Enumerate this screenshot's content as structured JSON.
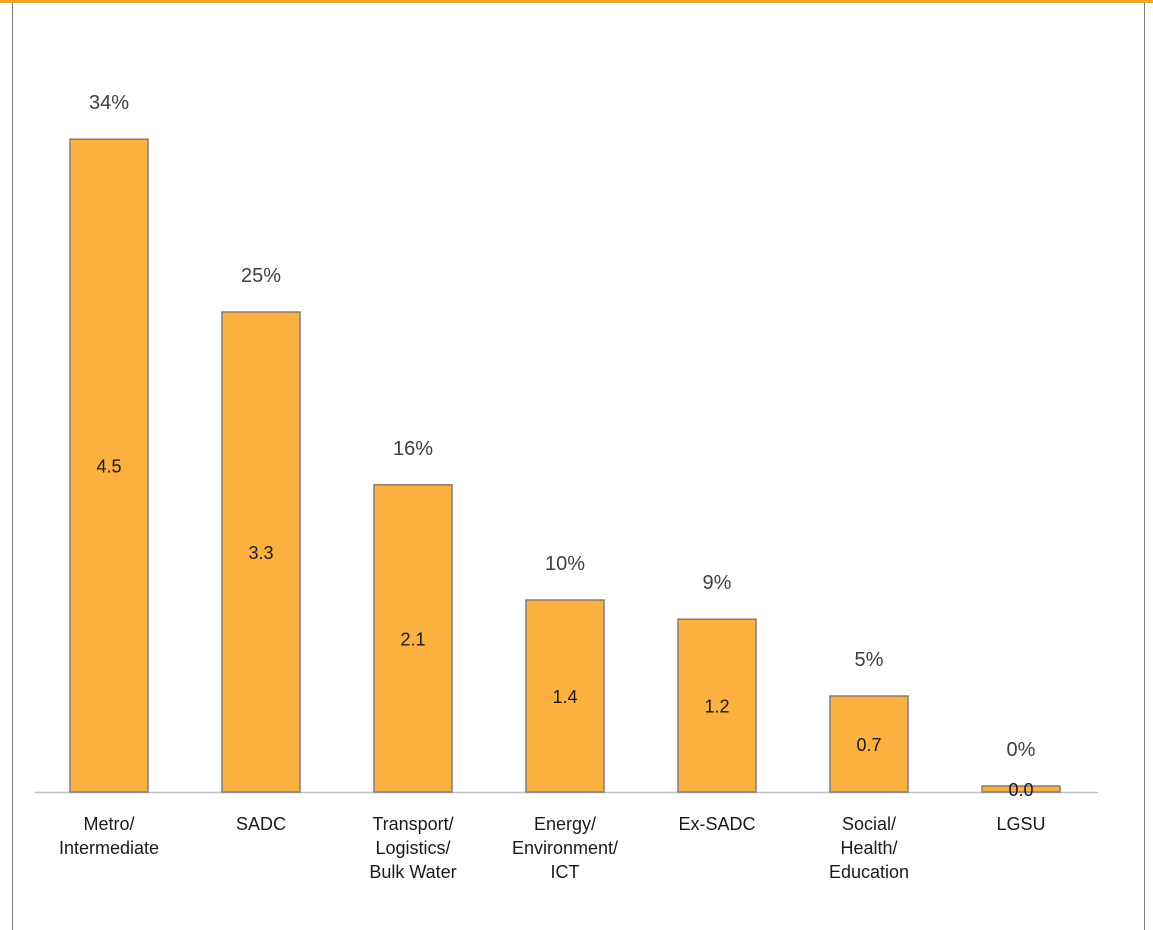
{
  "colors": {
    "accent_border": "#f5a623",
    "bar_fill": "#fbb040",
    "bar_stroke": "#7f7f7f",
    "axis": "#bfbfbf"
  },
  "chart_data": {
    "type": "bar",
    "categories": [
      [
        "Metro/",
        "Intermediate"
      ],
      [
        "SADC"
      ],
      [
        "Transport/",
        "Logistics/",
        "Bulk Water"
      ],
      [
        "Energy/",
        "Environment/",
        "ICT"
      ],
      [
        "Ex-SADC"
      ],
      [
        "Social/",
        "Health/",
        "Education"
      ],
      [
        "LGSU"
      ]
    ],
    "values": [
      4.5,
      3.3,
      2.1,
      1.4,
      1.2,
      0.7,
      0.0
    ],
    "value_labels": [
      "4.5",
      "3.3",
      "2.1",
      "1.4",
      "1.2",
      "0.7",
      "0.0"
    ],
    "percent_labels": [
      "34%",
      "25%",
      "16%",
      "10%",
      "9%",
      "5%",
      "0%"
    ],
    "percent_values": [
      34,
      25,
      16,
      10,
      9,
      5,
      0
    ],
    "grid": false,
    "legend": "none"
  }
}
